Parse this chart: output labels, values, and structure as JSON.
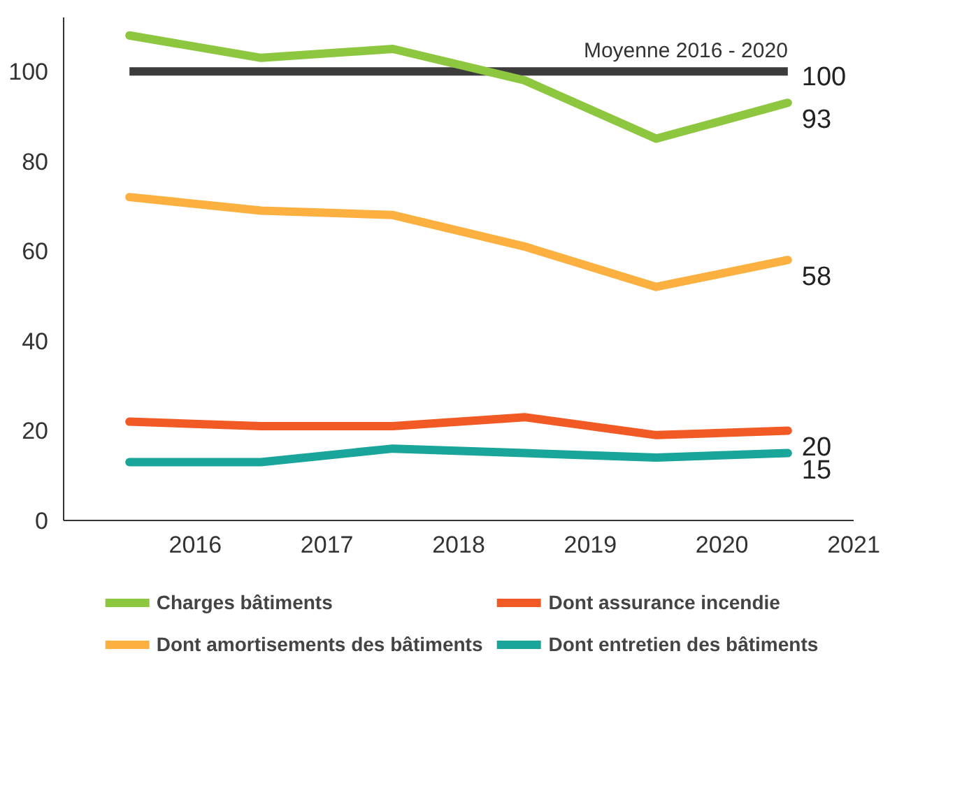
{
  "chart_data": {
    "type": "line",
    "x": [
      2015.5,
      2016.5,
      2017.5,
      2018.5,
      2019.5,
      2020.5
    ],
    "xlim": [
      2015,
      2021
    ],
    "xticks": [
      2016,
      2017,
      2018,
      2019,
      2020,
      2021
    ],
    "ylim": [
      0,
      112
    ],
    "yticks": [
      0,
      20,
      40,
      60,
      80,
      100
    ],
    "grid": false,
    "legend": "bottom",
    "marker": "none",
    "line_style": "solid",
    "series": [
      {
        "name": "Charges bâtiments",
        "color": "#8dc63f",
        "values": [
          108,
          103,
          105,
          98,
          85,
          93
        ],
        "value_labels": [
          null,
          null,
          null,
          null,
          null,
          "93"
        ]
      },
      {
        "name": "Dont amortisements des bâtiments",
        "color": "#fbb040",
        "values": [
          72,
          69,
          68,
          61,
          52,
          58
        ],
        "value_labels": [
          null,
          null,
          null,
          null,
          null,
          "58"
        ]
      },
      {
        "name": "Dont assurance incendie",
        "color": "#f15a24",
        "values": [
          22,
          21,
          21,
          23,
          19,
          20
        ],
        "value_labels": [
          null,
          null,
          null,
          null,
          null,
          "20"
        ]
      },
      {
        "name": "Dont entretien des bâtiments",
        "color": "#1aa59a",
        "values": [
          13,
          13,
          16,
          15,
          14,
          15
        ],
        "value_labels": [
          null,
          null,
          null,
          null,
          null,
          "15"
        ]
      }
    ],
    "ref_lines": [
      {
        "axis": "y",
        "value": 100,
        "label": "Moyenne 2016 - 2020",
        "color": "#3c3c3c"
      }
    ],
    "annotations": [
      {
        "text": "100",
        "x": 2020.5,
        "y": 100
      }
    ]
  }
}
